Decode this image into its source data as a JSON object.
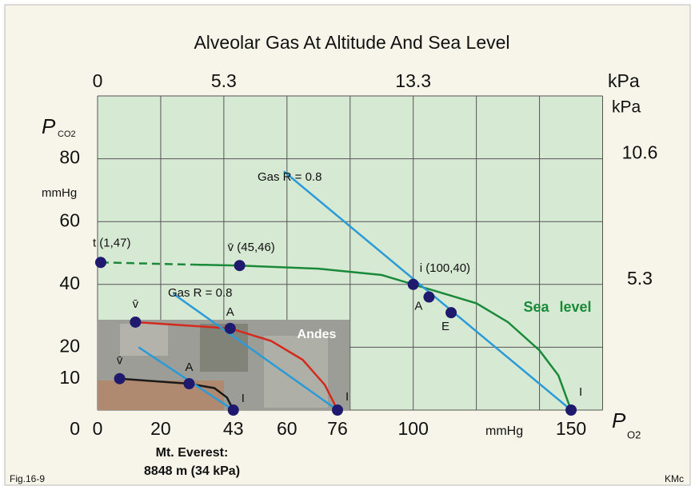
{
  "chart_data": {
    "type": "line",
    "title": "Alveolar Gas At Altitude And Sea Level",
    "y_label": "P",
    "y_label_sub": "CO2",
    "x_label": "P",
    "x_label_sub": "O2",
    "x_unit": "mmHg",
    "y_unit": "mmHg",
    "top_unit": "kPa",
    "right_unit": "kPa",
    "xlim": [
      0,
      160
    ],
    "ylim": [
      0,
      100
    ],
    "xticks": [
      0,
      20,
      43,
      60,
      76,
      100,
      150
    ],
    "yticks": [
      0,
      10,
      20,
      40,
      60,
      80
    ],
    "x2ticks": [
      {
        "value": 0,
        "label": "0"
      },
      {
        "value": 40,
        "label": "5.3"
      },
      {
        "value": 100,
        "label": "13.3"
      }
    ],
    "y2ticks": [
      {
        "value": 80,
        "label": "10.6"
      },
      {
        "value": 40,
        "label": "5.3"
      }
    ],
    "grid": true,
    "series": [
      {
        "color": "#1a8a3a",
        "dashed": true,
        "x": [
          1,
          30
        ],
        "values": [
          47,
          46.3
        ]
      },
      {
        "name": "Sea level",
        "color": "#1a8a3a",
        "x": [
          30,
          45,
          70,
          90,
          100,
          110,
          120,
          130,
          140,
          146,
          150
        ],
        "values": [
          46.3,
          46,
          45,
          43,
          40,
          37,
          34,
          28,
          19,
          11,
          0
        ]
      },
      {
        "name": "Andes",
        "color": "#d42a1e",
        "x": [
          12,
          42,
          55,
          65,
          72,
          76
        ],
        "values": [
          28,
          26,
          22,
          16,
          8,
          0
        ]
      },
      {
        "color": "#1a1a1a",
        "x": [
          7,
          29,
          37,
          41,
          43
        ],
        "values": [
          10,
          8.4,
          7,
          4,
          0
        ]
      },
      {
        "color": "#2b9ad6",
        "x": [
          59,
          150
        ],
        "values": [
          76,
          0
        ]
      },
      {
        "color": "#2b9ad6",
        "x": [
          24,
          76
        ],
        "values": [
          37,
          0
        ]
      },
      {
        "color": "#2b9ad6",
        "x": [
          13,
          43
        ],
        "values": [
          20,
          0
        ]
      }
    ],
    "points": {
      "color": "#1f1a6e",
      "x": [
        1,
        45,
        100,
        105,
        112,
        150,
        12,
        42,
        76,
        7,
        29,
        43
      ],
      "values": [
        47,
        46,
        40,
        36,
        31,
        0,
        28,
        26,
        0,
        10,
        8.4,
        0
      ],
      "labels": [
        "t (1,47)",
        "v̄  (45,46)",
        "i (100,40)",
        "A",
        "E",
        "I",
        "v̄",
        "A",
        "I",
        "v̄",
        "A",
        "I"
      ]
    },
    "annotations": [
      "Gas  R = 0.8",
      "Gas R = 0.8",
      "Mt. Everest:",
      "8848 m (34 kPa)"
    ],
    "footer_left": "Fig.16-9",
    "footer_right": "KMc"
  }
}
